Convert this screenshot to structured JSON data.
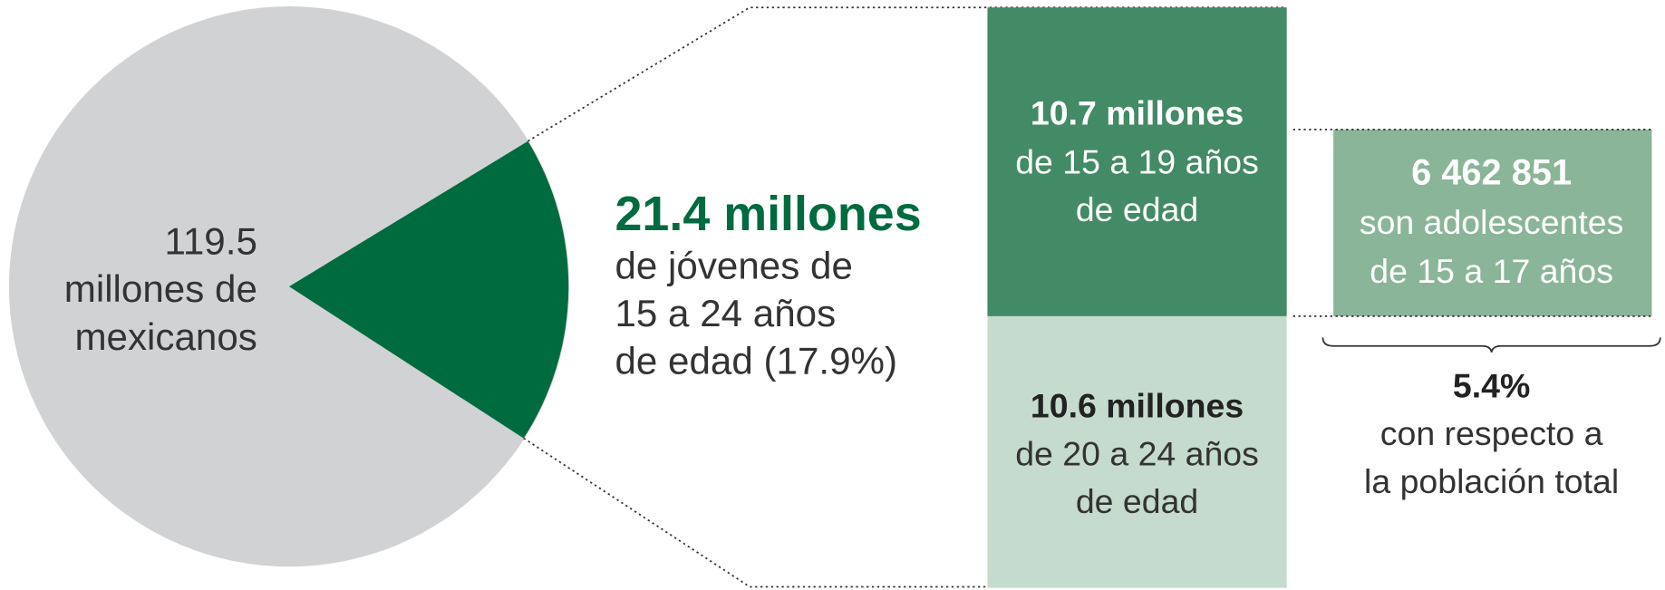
{
  "total": {
    "lines": [
      "119.5",
      "millones de",
      "mexicanos"
    ]
  },
  "youth": {
    "headline": "21.4 millones",
    "lines": [
      "de jóvenes de",
      "15 a 24 años",
      "de edad (17.9%)"
    ]
  },
  "group_15_19": {
    "headline": "10.7 millones",
    "lines": [
      "de 15 a 19 años",
      "de edad"
    ]
  },
  "group_20_24": {
    "headline": "10.6 millones",
    "lines": [
      "de 20 a 24 años",
      "de edad"
    ]
  },
  "teens": {
    "headline": "6 462 851",
    "lines": [
      "son adolescentes",
      "de 15 a 17 años"
    ]
  },
  "share": {
    "headline": "5.4%",
    "lines": [
      "con respecto a",
      "la población total"
    ]
  }
}
